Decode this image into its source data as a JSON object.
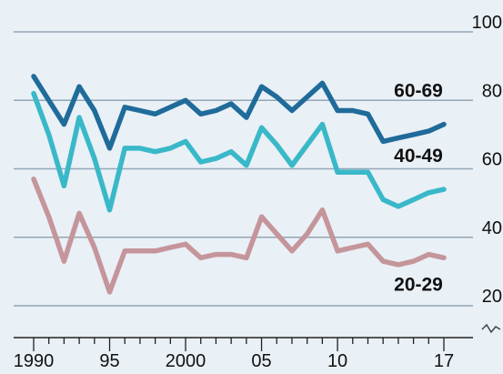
{
  "chart_data": {
    "type": "line",
    "title": "",
    "xlabel": "",
    "ylabel": "",
    "xlim": [
      1990,
      2017
    ],
    "ylim": [
      20,
      100
    ],
    "grid": true,
    "legend": "inline labels at right end of each series",
    "background": "#e9f0f6",
    "y_ticks": [
      "20",
      "40",
      "60",
      "80",
      "100"
    ],
    "y_tick_values": [
      20,
      40,
      60,
      80,
      100
    ],
    "x_ticks": [
      "1990",
      "95",
      "2000",
      "05",
      "10",
      "17"
    ],
    "x_tick_values": [
      1990,
      1995,
      2000,
      2005,
      2010,
      2017
    ],
    "x": [
      1990,
      1991,
      1992,
      1993,
      1994,
      1995,
      1996,
      1997,
      1998,
      1999,
      2000,
      2001,
      2002,
      2003,
      2004,
      2005,
      2006,
      2007,
      2008,
      2009,
      2010,
      2011,
      2012,
      2013,
      2014,
      2015,
      2016,
      2017
    ],
    "series": [
      {
        "name": "60-69",
        "color": "#1f6b9a",
        "values": [
          87,
          80,
          73,
          84,
          77,
          66,
          78,
          77,
          76,
          78,
          80,
          76,
          77,
          79,
          75,
          84,
          81,
          77,
          81,
          85,
          77,
          77,
          76,
          68,
          69,
          70,
          71,
          73
        ]
      },
      {
        "name": "40-49",
        "color": "#39b8c8",
        "values": [
          82,
          70,
          55,
          75,
          63,
          48,
          66,
          66,
          65,
          66,
          68,
          62,
          63,
          65,
          61,
          72,
          67,
          61,
          67,
          73,
          59,
          59,
          59,
          51,
          49,
          51,
          53,
          54
        ]
      },
      {
        "name": "20-29",
        "color": "#c4959a",
        "values": [
          57,
          46,
          33,
          47,
          37,
          24,
          36,
          36,
          36,
          37,
          38,
          34,
          35,
          35,
          34,
          46,
          41,
          36,
          41,
          48,
          36,
          37,
          38,
          33,
          32,
          33,
          35,
          34
        ]
      }
    ]
  }
}
